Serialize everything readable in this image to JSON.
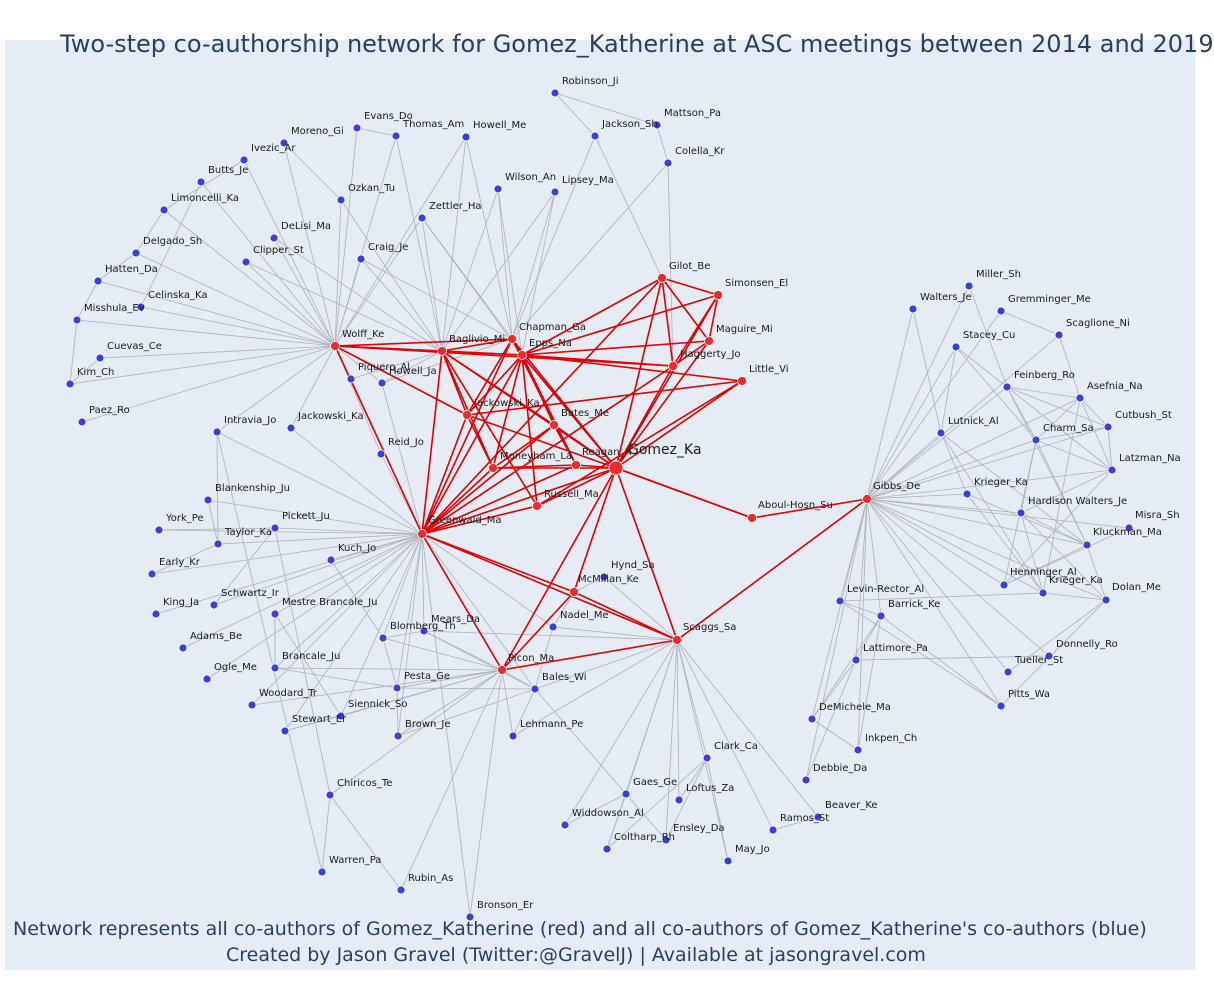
{
  "title": "Two-step co-authorship network for Gomez_Katherine at ASC meetings between 2014 and 2019",
  "footer_line1": "Network represents all co-authors of Gomez_Katherine (red) and all co-authors of Gomez_Katherine's co-authors (blue)",
  "footer_line2": "Created by Jason Gravel (Twitter:@GravelJ) | Available at jasongravel.com",
  "colors": {
    "background": "#e5ecf6",
    "coauthor_node": "#ef2a2a",
    "second_step_node": "#3a3fe0",
    "coauthor_edge": "#e00000",
    "second_step_edge": "#b0b0b8"
  },
  "nodes": [
    {
      "id": "Gomez_Ka",
      "group": "focal"
    },
    {
      "id": "Gilot_Be",
      "group": "red"
    },
    {
      "id": "Simonsen_El",
      "group": "red"
    },
    {
      "id": "Maguire_Mi",
      "group": "red"
    },
    {
      "id": "Haggerty_Jo",
      "group": "red"
    },
    {
      "id": "Little_Vi",
      "group": "red"
    },
    {
      "id": "Chapman_Ga",
      "group": "red"
    },
    {
      "id": "Epps_Na",
      "group": "red"
    },
    {
      "id": "Baglivio_Mi",
      "group": "red"
    },
    {
      "id": "Wolff_Ke",
      "group": "red"
    },
    {
      "id": "Jackowski_Ka",
      "group": "red"
    },
    {
      "id": "Bates_Me",
      "group": "red"
    },
    {
      "id": "Moneyham_La",
      "group": "red"
    },
    {
      "id": "Reagan_A",
      "group": "red"
    },
    {
      "id": "Russell_Ma",
      "group": "red"
    },
    {
      "id": "Greenwald_Ma",
      "group": "red"
    },
    {
      "id": "Aboul-Hosn_Su",
      "group": "red"
    },
    {
      "id": "Gibbs_De",
      "group": "red"
    },
    {
      "id": "McMillan_Ke",
      "group": "red"
    },
    {
      "id": "Scaggs_Sa",
      "group": "red"
    },
    {
      "id": "Picon_Ma",
      "group": "red"
    },
    {
      "id": "Robinson_Ji",
      "group": "blue"
    },
    {
      "id": "Mattson_Pa",
      "group": "blue"
    },
    {
      "id": "Jackson_Sh",
      "group": "blue"
    },
    {
      "id": "Colella_Kr",
      "group": "blue"
    },
    {
      "id": "Evans_Do",
      "group": "blue"
    },
    {
      "id": "Thomas_Am",
      "group": "blue"
    },
    {
      "id": "Howell_Me",
      "group": "blue"
    },
    {
      "id": "Moreno_Gi",
      "group": "blue"
    },
    {
      "id": "Ivezic_Ar",
      "group": "blue"
    },
    {
      "id": "Wilson_An",
      "group": "blue"
    },
    {
      "id": "Lipsey_Ma",
      "group": "blue"
    },
    {
      "id": "Butts_Je",
      "group": "blue"
    },
    {
      "id": "Ozkan_Tu",
      "group": "blue"
    },
    {
      "id": "Zettler_Ha",
      "group": "blue"
    },
    {
      "id": "Limoncelli_Ka",
      "group": "blue"
    },
    {
      "id": "DeLisi_Ma",
      "group": "blue"
    },
    {
      "id": "Delgado_Sh",
      "group": "blue"
    },
    {
      "id": "Craig_Je",
      "group": "blue"
    },
    {
      "id": "Clipper_St",
      "group": "blue"
    },
    {
      "id": "Hatten_Da",
      "group": "blue"
    },
    {
      "id": "Celinska_Ka",
      "group": "blue"
    },
    {
      "id": "Misshula_Ev",
      "group": "blue"
    },
    {
      "id": "Cuevas_Ce",
      "group": "blue"
    },
    {
      "id": "Kim_Ch",
      "group": "blue"
    },
    {
      "id": "Piquero_Al",
      "group": "blue"
    },
    {
      "id": "Howell_Ja",
      "group": "blue"
    },
    {
      "id": "Paez_Ro",
      "group": "blue"
    },
    {
      "id": "Intravia_Jo",
      "group": "blue"
    },
    {
      "id": "Jackowski_Ka",
      "group": "blue"
    },
    {
      "id": "Reid_Jo",
      "group": "blue"
    },
    {
      "id": "Blankenship_Ju",
      "group": "blue"
    },
    {
      "id": "York_Pe",
      "group": "blue"
    },
    {
      "id": "Pickett_Ju",
      "group": "blue"
    },
    {
      "id": "Taylor_Ka",
      "group": "blue"
    },
    {
      "id": "Early_Kr",
      "group": "blue"
    },
    {
      "id": "Kuch_Jo",
      "group": "blue"
    },
    {
      "id": "Schwartz_Ir",
      "group": "blue"
    },
    {
      "id": "King_Ja",
      "group": "blue"
    },
    {
      "id": "Mestre Brancale_Ju",
      "group": "blue"
    },
    {
      "id": "Adams_Be",
      "group": "blue"
    },
    {
      "id": "Mears_Da",
      "group": "blue"
    },
    {
      "id": "Blomberg_Th",
      "group": "blue"
    },
    {
      "id": "Ogle_Me",
      "group": "blue"
    },
    {
      "id": "Brancale_Ju",
      "group": "blue"
    },
    {
      "id": "Pesta_Ge",
      "group": "blue"
    },
    {
      "id": "Woodard_Tr",
      "group": "blue"
    },
    {
      "id": "Siennick_So",
      "group": "blue"
    },
    {
      "id": "Stewart_Er",
      "group": "blue"
    },
    {
      "id": "Brown_Je",
      "group": "blue"
    },
    {
      "id": "Chiricos_Te",
      "group": "blue"
    },
    {
      "id": "Warren_Pa",
      "group": "blue"
    },
    {
      "id": "Rubin_As",
      "group": "blue"
    },
    {
      "id": "Bronson_Er",
      "group": "blue"
    },
    {
      "id": "Hynd_Sa",
      "group": "blue"
    },
    {
      "id": "Nadel_Me",
      "group": "blue"
    },
    {
      "id": "Bales_Wi",
      "group": "blue"
    },
    {
      "id": "Lehmann_Pe",
      "group": "blue"
    },
    {
      "id": "Widdowson_Al",
      "group": "blue"
    },
    {
      "id": "Gaes_Ge",
      "group": "blue"
    },
    {
      "id": "Loftus_Za",
      "group": "blue"
    },
    {
      "id": "Clark_Ca",
      "group": "blue"
    },
    {
      "id": "Coltharp_Rh",
      "group": "blue"
    },
    {
      "id": "Ensley_Da",
      "group": "blue"
    },
    {
      "id": "May_Jo",
      "group": "blue"
    },
    {
      "id": "Ramos_St",
      "group": "blue"
    },
    {
      "id": "Beaver_Ke",
      "group": "blue"
    },
    {
      "id": "Debbie_Da",
      "group": "blue"
    },
    {
      "id": "Inkpen_Ch",
      "group": "blue"
    },
    {
      "id": "DeMichele_Ma",
      "group": "blue"
    },
    {
      "id": "Lattimore_Pa",
      "group": "blue"
    },
    {
      "id": "Barrick_Ke",
      "group": "blue"
    },
    {
      "id": "Levin-Rector_Al",
      "group": "blue"
    },
    {
      "id": "Pitts_Wa",
      "group": "blue"
    },
    {
      "id": "Tueller_St",
      "group": "blue"
    },
    {
      "id": "Donnelly_Ro",
      "group": "blue"
    },
    {
      "id": "Miller_Sh",
      "group": "blue"
    },
    {
      "id": "Walters_Je",
      "group": "blue"
    },
    {
      "id": "Gremminger_Me",
      "group": "blue"
    },
    {
      "id": "Stacey_Cu",
      "group": "blue"
    },
    {
      "id": "Scaglione_Ni",
      "group": "blue"
    },
    {
      "id": "Feinberg_Ro",
      "group": "blue"
    },
    {
      "id": "Asefnia_Na",
      "group": "blue"
    },
    {
      "id": "Lutnick_Al",
      "group": "blue"
    },
    {
      "id": "Charm_Sa",
      "group": "blue"
    },
    {
      "id": "Cutbush_St",
      "group": "blue"
    },
    {
      "id": "Latzman_Na",
      "group": "blue"
    },
    {
      "id": "Krieger_Ka",
      "group": "blue"
    },
    {
      "id": "Hardison Walters_Je",
      "group": "blue"
    },
    {
      "id": "Misra_Sh",
      "group": "blue"
    },
    {
      "id": "Kluckman_Ma",
      "group": "blue"
    },
    {
      "id": "Henninger_Al",
      "group": "blue"
    },
    {
      "id": "Krieger_Ka",
      "group": "blue"
    },
    {
      "id": "Dolan_Me",
      "group": "blue"
    }
  ]
}
